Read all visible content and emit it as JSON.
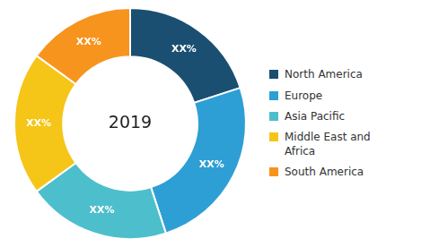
{
  "chart_data": {
    "type": "doughnut",
    "title": "2019",
    "categories": [
      "North America",
      "Europe",
      "Asia Pacific",
      "Middle East and\nAfrica",
      "South America"
    ],
    "values": [
      20,
      25,
      20,
      20,
      15
    ],
    "value_labels": [
      "XX%",
      "XX%",
      "XX%",
      "XX%",
      "XX%"
    ],
    "colors": [
      "#1b4f72",
      "#2e9fd4",
      "#4dbfcc",
      "#f5c518",
      "#f7941d"
    ],
    "data_labels": true,
    "legend": "right"
  }
}
